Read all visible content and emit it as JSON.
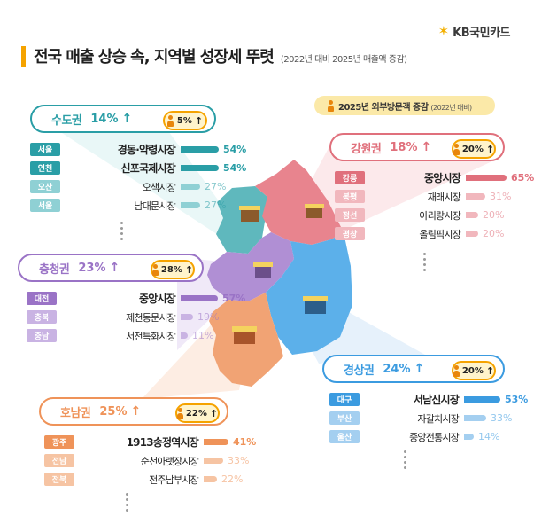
{
  "brand": {
    "name": "KB국민카드",
    "mark": "✶"
  },
  "title": "전국 매출 상승 속, 지역별 성장세 뚜렷",
  "subtitle": "(2022년 대비 2025년 매출액 증감)",
  "legend": {
    "label": "2025년 외부방문객 증감",
    "sub": "(2022년 대비)"
  },
  "colors": {
    "sudo": "#2a9ea6",
    "sudo_light": "#8fd0d4",
    "gangwon": "#e0707c",
    "gangwon_light": "#f1b7bd",
    "chungcheong": "#9a73c6",
    "chungcheong_light": "#c9b3e3",
    "gyeongsang": "#3b9be0",
    "gyeongsang_light": "#a4cff0",
    "honam": "#ef9359",
    "honam_light": "#f6c4a3",
    "accent": "#f5a300"
  },
  "regions": [
    {
      "key": "sudo",
      "name": "수도권",
      "pct": "14%",
      "visit": "5%",
      "markets": [
        {
          "city": "서울",
          "name": "경동·약령시장",
          "value": "54%",
          "num": 54
        },
        {
          "city": "인천",
          "name": "신포국제시장",
          "value": "54%",
          "num": 54
        },
        {
          "city": "오산",
          "name": "오색시장",
          "value": "27%",
          "num": 27
        },
        {
          "city": "서울",
          "name": "남대문시장",
          "value": "27%",
          "num": 27
        }
      ]
    },
    {
      "key": "gangwon",
      "name": "강원권",
      "pct": "18%",
      "visit": "20%",
      "markets": [
        {
          "city": "강릉",
          "name": "중앙시장",
          "value": "65%",
          "num": 65
        },
        {
          "city": "봉평",
          "name": "재래시장",
          "value": "31%",
          "num": 31
        },
        {
          "city": "정선",
          "name": "아리랑시장",
          "value": "20%",
          "num": 20
        },
        {
          "city": "평창",
          "name": "올림픽시장",
          "value": "20%",
          "num": 20
        }
      ]
    },
    {
      "key": "chungcheong",
      "name": "충청권",
      "pct": "23%",
      "visit": "28%",
      "markets": [
        {
          "city": "대전",
          "name": "중앙시장",
          "value": "57%",
          "num": 57
        },
        {
          "city": "충북",
          "name": "제천동문시장",
          "value": "19%",
          "num": 19
        },
        {
          "city": "충남",
          "name": "서천특화시장",
          "value": "11%",
          "num": 11
        }
      ]
    },
    {
      "key": "gyeongsang",
      "name": "경상권",
      "pct": "24%",
      "visit": "20%",
      "markets": [
        {
          "city": "대구",
          "name": "서남신시장",
          "value": "53%",
          "num": 53
        },
        {
          "city": "부산",
          "name": "자갈치시장",
          "value": "33%",
          "num": 33
        },
        {
          "city": "울산",
          "name": "중앙전통시장",
          "value": "14%",
          "num": 14
        }
      ]
    },
    {
      "key": "honam",
      "name": "호남권",
      "pct": "25%",
      "visit": "22%",
      "markets": [
        {
          "city": "광주",
          "name": "1913송정역시장",
          "value": "41%",
          "num": 41
        },
        {
          "city": "전남",
          "name": "순천아랫장시장",
          "value": "33%",
          "num": 33
        },
        {
          "city": "전북",
          "name": "전주남부시장",
          "value": "22%",
          "num": 22
        }
      ]
    }
  ],
  "icons": {
    "arrow": "↑",
    "person": "person-icon",
    "market": "market-stall-icon"
  }
}
